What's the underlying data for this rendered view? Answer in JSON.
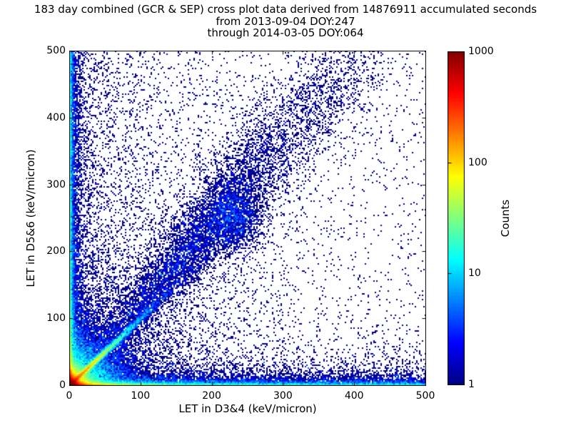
{
  "figure": {
    "background": "#ffffff",
    "title_lines": [
      "183 day combined (GCR & SEP) cross plot data derived from 14876911 accumulated seconds",
      "from 2013-09-04 DOY:247",
      "through 2014-03-05 DOY:064"
    ]
  },
  "chart_data": {
    "type": "heatmap",
    "title": "183 day combined (GCR & SEP) cross plot data derived from 14876911 accumulated seconds from 2013-09-04 DOY:247 through 2014-03-05 DOY:064",
    "xlabel": "LET in D3&4 (keV/micron)",
    "ylabel": "LET in D5&6 (keV/micron)",
    "xlim": [
      0,
      500
    ],
    "ylim": [
      0,
      500
    ],
    "xticks": [
      0,
      100,
      200,
      300,
      400,
      500
    ],
    "yticks": [
      0,
      100,
      200,
      300,
      400,
      500
    ],
    "grid": false,
    "background_color": "#ffffff",
    "point_color_min": "#000080",
    "frame_color": "#000000",
    "colorbar": {
      "label": "Counts",
      "scale": "log",
      "range": [
        1,
        1000
      ],
      "ticks": [
        1,
        10,
        100,
        1000
      ],
      "colormap": "jet"
    },
    "bin_size_data_units": 2,
    "seed": 20130904,
    "density_features": [
      {
        "name": "origin-core",
        "type": "exp2d",
        "n": 26000,
        "sx": 5,
        "sy": 5
      },
      {
        "name": "left-edge-hot",
        "type": "exp2d",
        "n": 3500,
        "sx": 1.8,
        "sy": 10
      },
      {
        "name": "bottom-edge-hot",
        "type": "exp2d",
        "n": 5500,
        "sx": 25,
        "sy": 1.8
      },
      {
        "name": "diagonal-streak",
        "type": "ray",
        "n": 11000,
        "angle_deg": 45,
        "r_scale": 45,
        "width": 1.3,
        "spread": 0.01
      },
      {
        "name": "origin-fan",
        "type": "fan",
        "n": 20000,
        "r_scale": 30,
        "angle_min_deg": 0,
        "angle_max_deg": 90
      },
      {
        "name": "bottom-band",
        "type": "edge_band",
        "axis": "x",
        "n": 10000,
        "pos_exponent": 3.2,
        "thickness": 2.4
      },
      {
        "name": "bottom-fuzz",
        "type": "edge_band",
        "axis": "x",
        "n": 6000,
        "pos_exponent": 2.0,
        "thickness": 8
      },
      {
        "name": "bottom-uniform",
        "type": "edge_band",
        "axis": "x",
        "n": 2600,
        "pos_exponent": 1.0,
        "thickness": 2.6
      },
      {
        "name": "left-band",
        "type": "edge_band",
        "axis": "y",
        "n": 8000,
        "pos_exponent": 2.2,
        "thickness": 2.0
      },
      {
        "name": "left-fuzz",
        "type": "edge_band",
        "axis": "y",
        "n": 4200,
        "pos_exponent": 1.6,
        "thickness": 8
      },
      {
        "name": "left-uniform",
        "type": "edge_band",
        "axis": "y",
        "n": 2000,
        "pos_exponent": 1.0,
        "thickness": 2.4
      },
      {
        "name": "diagonal-band",
        "type": "band_path",
        "n": 7000,
        "x0": 50,
        "y0": 52,
        "x1": 355,
        "y1": 445,
        "t_mode": 0.45,
        "t_sigma": 0.27,
        "width_base": 9,
        "width_grow": 30
      },
      {
        "name": "diagonal-blob",
        "type": "gauss2d",
        "n": 1600,
        "cx": 232,
        "cy": 247,
        "sx": 20,
        "sy": 24
      },
      {
        "name": "upper-tail",
        "type": "band_path",
        "n": 800,
        "x0": 300,
        "y0": 380,
        "x1": 445,
        "y1": 510,
        "t_mode": 0.5,
        "t_sigma": 0.3,
        "width_base": 25,
        "width_grow": 10
      },
      {
        "name": "ray-86",
        "type": "ray",
        "n": 600,
        "angle_deg": 86,
        "r_scale": 170,
        "width": 2.5,
        "spread": 0.035
      },
      {
        "name": "ray-79",
        "type": "ray",
        "n": 550,
        "angle_deg": 79,
        "r_scale": 150,
        "width": 3,
        "spread": 0.035
      },
      {
        "name": "ray-71",
        "type": "ray",
        "n": 500,
        "angle_deg": 71,
        "r_scale": 140,
        "width": 3.5,
        "spread": 0.04
      },
      {
        "name": "ray-62",
        "type": "ray",
        "n": 450,
        "angle_deg": 62,
        "r_scale": 130,
        "width": 4,
        "spread": 0.04
      },
      {
        "name": "ray-53",
        "type": "ray",
        "n": 480,
        "angle_deg": 53,
        "r_scale": 150,
        "width": 4,
        "spread": 0.04
      },
      {
        "name": "ray-37",
        "type": "ray",
        "n": 480,
        "angle_deg": 37,
        "r_scale": 140,
        "width": 4,
        "spread": 0.04
      },
      {
        "name": "ray-28",
        "type": "ray",
        "n": 450,
        "angle_deg": 28,
        "r_scale": 150,
        "width": 5,
        "spread": 0.045
      },
      {
        "name": "ray-18",
        "type": "ray",
        "n": 400,
        "angle_deg": 18,
        "r_scale": 160,
        "width": 5,
        "spread": 0.045
      },
      {
        "name": "low-scatter",
        "type": "edge_band",
        "axis": "x",
        "n": 2200,
        "pos_exponent": 1.2,
        "thickness": 25
      },
      {
        "name": "left-diffuse",
        "type": "edge_band",
        "axis": "y",
        "n": 2800,
        "pos_exponent": 1.0,
        "thickness": 110
      },
      {
        "name": "diffuse",
        "type": "uniform",
        "n": 1600,
        "x_min": 0,
        "x_max": 500,
        "y_min": 0,
        "y_max": 500
      }
    ]
  }
}
